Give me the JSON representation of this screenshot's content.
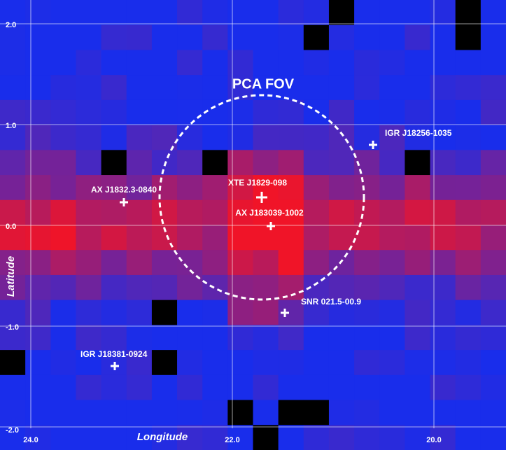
{
  "map": {
    "title": "PCA FOV",
    "x_label": "Longitude",
    "y_label": "Latitude",
    "xticks": [
      {
        "value": 24,
        "label": "24.0"
      },
      {
        "value": 22,
        "label": "22.0"
      },
      {
        "value": 20,
        "label": "20.0"
      }
    ],
    "yticks": [
      {
        "value": 2,
        "label": "2.0"
      },
      {
        "value": 1,
        "label": "1.0"
      },
      {
        "value": 0,
        "label": "0.0"
      },
      {
        "value": -1,
        "label": "-1.0"
      },
      {
        "value": -2,
        "label": "-2.0"
      }
    ],
    "sources": [
      "AX J1832.3-0840",
      "XTE J1829-098",
      "AX J183039-1002",
      "IGR J18256-1035",
      "SNR 021.5-00.9",
      "IGR J18381-0924"
    ]
  }
}
